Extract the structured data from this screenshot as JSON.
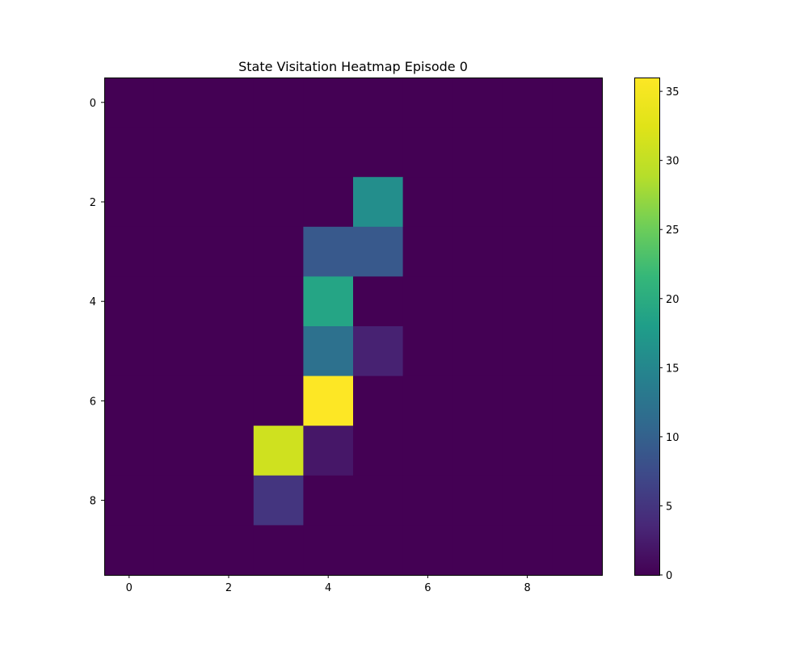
{
  "chart_data": {
    "type": "heatmap",
    "title": "State Visitation Heatmap Episode 0",
    "xlabel": "",
    "ylabel": "",
    "rows": 10,
    "cols": 10,
    "xlim": [
      -0.5,
      9.5
    ],
    "ylim": [
      9.5,
      -0.5
    ],
    "x_ticks": [
      0,
      2,
      4,
      6,
      8
    ],
    "y_ticks": [
      0,
      2,
      4,
      6,
      8
    ],
    "values": [
      [
        0,
        0,
        0,
        0,
        0,
        0,
        0,
        0,
        0,
        0
      ],
      [
        0,
        0,
        0,
        0,
        0,
        0,
        0,
        0,
        0,
        0
      ],
      [
        0,
        0,
        0,
        0,
        0,
        16,
        0,
        0,
        0,
        0
      ],
      [
        0,
        0,
        0,
        0,
        9,
        9,
        0,
        0,
        0,
        0
      ],
      [
        0,
        0,
        0,
        0,
        19,
        0,
        0,
        0,
        0,
        0
      ],
      [
        0,
        0,
        0,
        0,
        12,
        3,
        0,
        0,
        0,
        0
      ],
      [
        0,
        0,
        0,
        0,
        36,
        0,
        0,
        0,
        0,
        0
      ],
      [
        0,
        0,
        0,
        31,
        2,
        0,
        0,
        0,
        0,
        0
      ],
      [
        0,
        0,
        0,
        5,
        0,
        0,
        0,
        0,
        0,
        0
      ],
      [
        0,
        0,
        0,
        0,
        0,
        0,
        0,
        0,
        0,
        0
      ]
    ],
    "colorbar": {
      "colormap": "viridis",
      "vmin": 0,
      "vmax": 36,
      "ticks": [
        0,
        5,
        10,
        15,
        20,
        25,
        30,
        35
      ]
    },
    "grid": false,
    "legend": "none"
  }
}
